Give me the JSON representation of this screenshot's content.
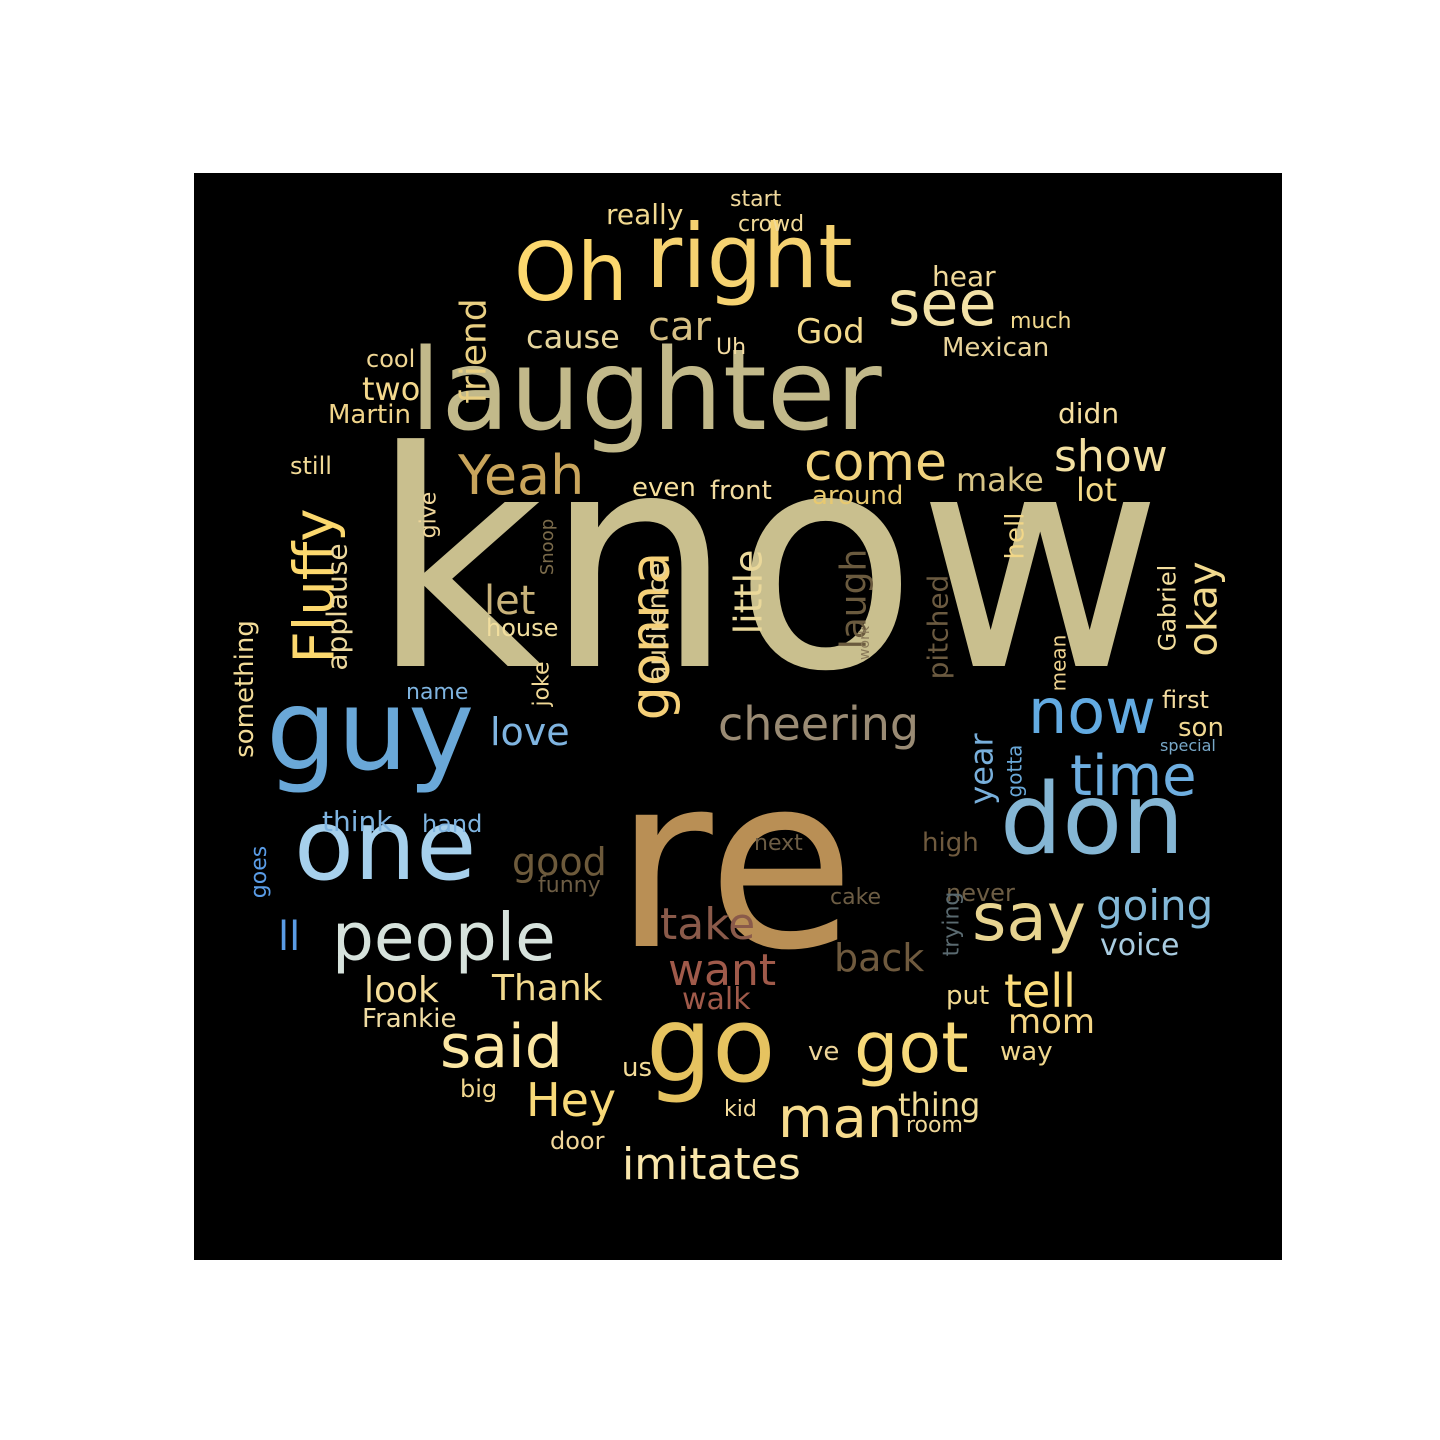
{
  "words": [
    {
      "text": "know",
      "size": 1.0,
      "color": "#c9bf8e",
      "vertical": false
    },
    {
      "text": "re",
      "size": 0.78,
      "color": "#b98f55",
      "vertical": false
    },
    {
      "text": "laughter",
      "size": 0.52,
      "color": "#c2b98a",
      "vertical": false
    },
    {
      "text": "right",
      "size": 0.36,
      "color": "#f5d271",
      "vertical": false
    },
    {
      "text": "Oh",
      "size": 0.36,
      "color": "#fcd86e",
      "vertical": false
    },
    {
      "text": "guy",
      "size": 0.34,
      "color": "#6aa8d8",
      "vertical": false
    },
    {
      "text": "don",
      "size": 0.34,
      "color": "#85b6d4",
      "vertical": false
    },
    {
      "text": "one",
      "size": 0.32,
      "color": "#a6d0ec",
      "vertical": false
    },
    {
      "text": "go",
      "size": 0.3,
      "color": "#e6c360",
      "vertical": false
    },
    {
      "text": "people",
      "size": 0.22,
      "color": "#d6e2dc",
      "vertical": false
    },
    {
      "text": "got",
      "size": 0.22,
      "color": "#f7d97a",
      "vertical": false
    },
    {
      "text": "now",
      "size": 0.2,
      "color": "#63abe2",
      "vertical": false
    },
    {
      "text": "say",
      "size": 0.2,
      "color": "#e8d490",
      "vertical": false
    },
    {
      "text": "Fluffy",
      "size": 0.19,
      "color": "#fcd86e",
      "vertical": true
    },
    {
      "text": "gonna",
      "size": 0.18,
      "color": "#f5d078",
      "vertical": true
    },
    {
      "text": "see",
      "size": 0.18,
      "color": "#f2e1a6",
      "vertical": false
    },
    {
      "text": "said",
      "size": 0.17,
      "color": "#fbe6a2",
      "vertical": false
    },
    {
      "text": "man",
      "size": 0.17,
      "color": "#f6db8d",
      "vertical": false
    },
    {
      "text": "Yeah",
      "size": 0.16,
      "color": "#c9a55c",
      "vertical": false
    },
    {
      "text": "come",
      "size": 0.16,
      "color": "#f1d37e",
      "vertical": false
    },
    {
      "text": "time",
      "size": 0.16,
      "color": "#6eaee0",
      "vertical": false
    },
    {
      "text": "cheering",
      "size": 0.14,
      "color": "#9a8b74",
      "vertical": false
    },
    {
      "text": "show",
      "size": 0.13,
      "color": "#f3e0a2",
      "vertical": false
    },
    {
      "text": "going",
      "size": 0.13,
      "color": "#84b9d8",
      "vertical": false
    },
    {
      "text": "imitates",
      "size": 0.13,
      "color": "#f9e6ab",
      "vertical": false
    },
    {
      "text": "Hey",
      "size": 0.13,
      "color": "#f8d978",
      "vertical": false
    },
    {
      "text": "take",
      "size": 0.13,
      "color": "#8a5a4a",
      "vertical": false
    },
    {
      "text": "want",
      "size": 0.13,
      "color": "#a05a4a",
      "vertical": false
    },
    {
      "text": "tell",
      "size": 0.13,
      "color": "#fcdc7a",
      "vertical": false
    },
    {
      "text": "okay",
      "size": 0.12,
      "color": "#f1d98e",
      "vertical": true
    },
    {
      "text": "little",
      "size": 0.12,
      "color": "#ead89a",
      "vertical": true
    },
    {
      "text": "car",
      "size": 0.12,
      "color": "#d7c084",
      "vertical": false
    },
    {
      "text": "friend",
      "size": 0.12,
      "color": "#e9cf82",
      "vertical": true
    },
    {
      "text": "back",
      "size": 0.11,
      "color": "#6f5a3e",
      "vertical": false
    },
    {
      "text": "good",
      "size": 0.11,
      "color": "#6d5a3b",
      "vertical": false
    },
    {
      "text": "laugh",
      "size": 0.11,
      "color": "#6a5a3e",
      "vertical": true
    },
    {
      "text": "let",
      "size": 0.11,
      "color": "#c8b27a",
      "vertical": false
    },
    {
      "text": "love",
      "size": 0.11,
      "color": "#7fb4e0",
      "vertical": false
    },
    {
      "text": "Thank",
      "size": 0.11,
      "color": "#f2da8e",
      "vertical": false
    },
    {
      "text": "look",
      "size": 0.11,
      "color": "#f5dd9a",
      "vertical": false
    },
    {
      "text": "year",
      "size": 0.1,
      "color": "#78afdb",
      "vertical": true
    },
    {
      "text": "mom",
      "size": 0.1,
      "color": "#f4d584",
      "vertical": false
    },
    {
      "text": "God",
      "size": 0.1,
      "color": "#f3da8c",
      "vertical": false
    },
    {
      "text": "cause",
      "size": 0.09,
      "color": "#e6d59c",
      "vertical": false
    },
    {
      "text": "thing",
      "size": 0.09,
      "color": "#f0dc98",
      "vertical": false
    },
    {
      "text": "make",
      "size": 0.09,
      "color": "#d8c586",
      "vertical": false
    },
    {
      "text": "lot",
      "size": 0.09,
      "color": "#f5da86",
      "vertical": false
    },
    {
      "text": "two",
      "size": 0.09,
      "color": "#f4d88c",
      "vertical": false
    },
    {
      "text": "ll",
      "size": 0.09,
      "color": "#5a9ce6",
      "vertical": false
    },
    {
      "text": "voice",
      "size": 0.08,
      "color": "#a9cce0",
      "vertical": false
    },
    {
      "text": "applause",
      "size": 0.08,
      "color": "#ecd79c",
      "vertical": true
    },
    {
      "text": "pitched",
      "size": 0.08,
      "color": "#6b5a40",
      "vertical": true
    },
    {
      "text": "walk",
      "size": 0.08,
      "color": "#a05a4a",
      "vertical": false
    },
    {
      "text": "audience",
      "size": 0.07,
      "color": "#e9d49a",
      "vertical": true
    },
    {
      "text": "Frankie",
      "size": 0.07,
      "color": "#f0dca3",
      "vertical": false
    },
    {
      "text": "Mexican",
      "size": 0.07,
      "color": "#e8d39a",
      "vertical": false
    },
    {
      "text": "think",
      "size": 0.07,
      "color": "#7fb4e0",
      "vertical": false
    },
    {
      "text": "way",
      "size": 0.07,
      "color": "#f0d78e",
      "vertical": false
    },
    {
      "text": "didn",
      "size": 0.07,
      "color": "#f6dfa0",
      "vertical": false
    },
    {
      "text": "Martin",
      "size": 0.07,
      "color": "#f0d48a",
      "vertical": false
    },
    {
      "text": "really",
      "size": 0.07,
      "color": "#f1d990",
      "vertical": false
    },
    {
      "text": "front",
      "size": 0.07,
      "color": "#f3dca0",
      "vertical": false
    },
    {
      "text": "around",
      "size": 0.07,
      "color": "#e8c970",
      "vertical": false
    },
    {
      "text": "put",
      "size": 0.07,
      "color": "#f2da92",
      "vertical": false
    },
    {
      "text": "hear",
      "size": 0.07,
      "color": "#f0d99a",
      "vertical": false
    },
    {
      "text": "ve",
      "size": 0.07,
      "color": "#eed59a",
      "vertical": false
    },
    {
      "text": "even",
      "size": 0.07,
      "color": "#f6df9c",
      "vertical": false
    },
    {
      "text": "Gabriel",
      "size": 0.07,
      "color": "#f3de9e",
      "vertical": true
    },
    {
      "text": "hell",
      "size": 0.07,
      "color": "#f2d788",
      "vertical": true
    },
    {
      "text": "something",
      "size": 0.07,
      "color": "#f3dc98",
      "vertical": true
    },
    {
      "text": "high",
      "size": 0.07,
      "color": "#6f5a3e",
      "vertical": false
    },
    {
      "text": "son",
      "size": 0.07,
      "color": "#f1d892",
      "vertical": false
    },
    {
      "text": "never",
      "size": 0.07,
      "color": "#6d5d44",
      "vertical": false
    },
    {
      "text": "us",
      "size": 0.07,
      "color": "#f4dc98",
      "vertical": false
    },
    {
      "text": "house",
      "size": 0.07,
      "color": "#f1de9e",
      "vertical": false
    },
    {
      "text": "still",
      "size": 0.07,
      "color": "#f2da96",
      "vertical": false
    },
    {
      "text": "cool",
      "size": 0.07,
      "color": "#efd694",
      "vertical": false
    },
    {
      "text": "hand",
      "size": 0.06,
      "color": "#7fb4e0",
      "vertical": false
    },
    {
      "text": "first",
      "size": 0.06,
      "color": "#f4dca0",
      "vertical": false
    },
    {
      "text": "give",
      "size": 0.06,
      "color": "#eed59a",
      "vertical": true
    },
    {
      "text": "big",
      "size": 0.06,
      "color": "#f2d890",
      "vertical": false
    },
    {
      "text": "door",
      "size": 0.06,
      "color": "#f1d79a",
      "vertical": false
    },
    {
      "text": "name",
      "size": 0.06,
      "color": "#7fb4e0",
      "vertical": false
    },
    {
      "text": "much",
      "size": 0.06,
      "color": "#f1d88e",
      "vertical": false
    },
    {
      "text": "kid",
      "size": 0.06,
      "color": "#f4dc9c",
      "vertical": false
    },
    {
      "text": "joke",
      "size": 0.06,
      "color": "#f0d896",
      "vertical": true
    },
    {
      "text": "room",
      "size": 0.06,
      "color": "#f1d89a",
      "vertical": false
    },
    {
      "text": "start",
      "size": 0.06,
      "color": "#f1d99c",
      "vertical": false
    },
    {
      "text": "gotta",
      "size": 0.06,
      "color": "#6aa8d8",
      "vertical": true
    },
    {
      "text": "mean",
      "size": 0.06,
      "color": "#efd390",
      "vertical": true
    },
    {
      "text": "Uh",
      "size": 0.06,
      "color": "#f4dca2",
      "vertical": false
    },
    {
      "text": "next",
      "size": 0.06,
      "color": "#6d5d44",
      "vertical": false
    },
    {
      "text": "trying",
      "size": 0.06,
      "color": "#5a6a70",
      "vertical": true
    },
    {
      "text": "goes",
      "size": 0.06,
      "color": "#5a9ce6",
      "vertical": true
    },
    {
      "text": "cake",
      "size": 0.06,
      "color": "#6d5d44",
      "vertical": false
    },
    {
      "text": "funny",
      "size": 0.06,
      "color": "#6d5d44",
      "vertical": false
    },
    {
      "text": "crowd",
      "size": 0.06,
      "color": "#f2da98",
      "vertical": false
    },
    {
      "text": "Snoop",
      "size": 0.05,
      "color": "#7a6a4a",
      "vertical": true
    },
    {
      "text": "special",
      "size": 0.05,
      "color": "#78a8c8",
      "vertical": false
    },
    {
      "text": "work",
      "size": 0.04,
      "color": "#8a7a5a",
      "vertical": true
    }
  ]
}
